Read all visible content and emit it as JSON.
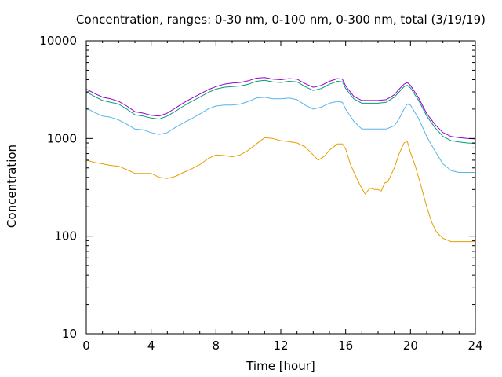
{
  "chart_data": {
    "type": "line",
    "title": "Concentration, ranges: 0-30 nm, 0-100 nm, 0-300 nm, total (3/19/19)",
    "xlabel": "Time [hour]",
    "ylabel": "Concentration",
    "xlim": [
      0,
      24
    ],
    "ylim": [
      10,
      10000
    ],
    "yscale": "log",
    "grid": false,
    "legend": "none",
    "x_ticks": [
      {
        "value": 0,
        "label": "0"
      },
      {
        "value": 4,
        "label": "4"
      },
      {
        "value": 8,
        "label": "8"
      },
      {
        "value": 12,
        "label": "12"
      },
      {
        "value": 16,
        "label": "16"
      },
      {
        "value": 20,
        "label": "20"
      },
      {
        "value": 24,
        "label": "24"
      }
    ],
    "y_ticks": [
      {
        "value": 10,
        "label": "10"
      },
      {
        "value": 100,
        "label": "100"
      },
      {
        "value": 1000,
        "label": "1000"
      },
      {
        "value": 10000,
        "label": "10000"
      }
    ],
    "series": [
      {
        "color": "#e69f00",
        "x": [
          0,
          0.5,
          1,
          1.5,
          2,
          2.5,
          3,
          3.5,
          4,
          4.5,
          5,
          5.5,
          6,
          6.5,
          7,
          7.5,
          8,
          8.5,
          9,
          9.5,
          10,
          10.5,
          11,
          11.5,
          12,
          12.5,
          13,
          13.5,
          14,
          14.3,
          14.7,
          15,
          15.5,
          15.8,
          16,
          16.3,
          16.6,
          16.9,
          17.2,
          17.5,
          17.8,
          18,
          18.2,
          18.4,
          18.6,
          19,
          19.3,
          19.6,
          19.8,
          20,
          20.3,
          20.6,
          21,
          21.3,
          21.6,
          22,
          22.5,
          23,
          23.5,
          24
        ],
        "values": [
          600,
          570,
          550,
          530,
          520,
          480,
          440,
          440,
          440,
          400,
          390,
          410,
          450,
          490,
          540,
          620,
          680,
          670,
          650,
          680,
          760,
          880,
          1020,
          1000,
          950,
          930,
          900,
          820,
          680,
          600,
          660,
          760,
          880,
          880,
          780,
          540,
          420,
          330,
          270,
          310,
          300,
          300,
          290,
          350,
          360,
          500,
          700,
          900,
          940,
          720,
          520,
          350,
          200,
          140,
          110,
          95,
          88,
          88,
          88,
          88
        ]
      },
      {
        "color": "#56b4e9",
        "x": [
          0,
          0.5,
          1,
          1.5,
          2,
          2.5,
          3,
          3.5,
          4,
          4.5,
          5,
          5.5,
          6,
          6.5,
          7,
          7.5,
          8,
          8.5,
          9,
          9.5,
          10,
          10.5,
          11,
          11.5,
          12,
          12.5,
          13,
          13.5,
          14,
          14.5,
          15,
          15.5,
          15.8,
          16,
          16.5,
          17,
          17.5,
          18,
          18.5,
          19,
          19.3,
          19.6,
          19.8,
          20,
          20.5,
          21,
          21.5,
          22,
          22.5,
          23,
          23.5,
          24
        ],
        "values": [
          2050,
          1850,
          1700,
          1650,
          1550,
          1400,
          1250,
          1230,
          1150,
          1100,
          1150,
          1300,
          1450,
          1600,
          1780,
          2000,
          2150,
          2200,
          2200,
          2250,
          2400,
          2600,
          2650,
          2550,
          2550,
          2600,
          2500,
          2200,
          2000,
          2100,
          2300,
          2400,
          2350,
          2000,
          1500,
          1250,
          1250,
          1250,
          1250,
          1350,
          1600,
          2000,
          2250,
          2200,
          1600,
          1050,
          750,
          550,
          470,
          450,
          450,
          450
        ]
      },
      {
        "color": "#009e73",
        "x": [
          0,
          0.5,
          1,
          1.5,
          2,
          2.5,
          3,
          3.5,
          4,
          4.5,
          5,
          5.5,
          6,
          6.5,
          7,
          7.5,
          8,
          8.5,
          9,
          9.5,
          10,
          10.5,
          11,
          11.5,
          12,
          12.5,
          13,
          13.5,
          14,
          14.5,
          15,
          15.5,
          15.8,
          16,
          16.5,
          17,
          17.5,
          18,
          18.5,
          19,
          19.3,
          19.6,
          19.8,
          20,
          20.5,
          21,
          21.5,
          22,
          22.5,
          23,
          23.5,
          24
        ],
        "values": [
          3000,
          2700,
          2450,
          2350,
          2250,
          2000,
          1750,
          1700,
          1620,
          1580,
          1700,
          1900,
          2150,
          2400,
          2650,
          2950,
          3200,
          3350,
          3400,
          3450,
          3600,
          3850,
          3950,
          3800,
          3750,
          3850,
          3800,
          3400,
          3100,
          3250,
          3600,
          3850,
          3800,
          3250,
          2550,
          2300,
          2300,
          2300,
          2350,
          2650,
          3000,
          3400,
          3500,
          3300,
          2450,
          1700,
          1300,
          1050,
          950,
          920,
          900,
          890
        ]
      },
      {
        "color": "#9400d3",
        "x": [
          0,
          0.5,
          1,
          1.5,
          2,
          2.5,
          3,
          3.5,
          4,
          4.5,
          5,
          5.5,
          6,
          6.5,
          7,
          7.5,
          8,
          8.5,
          9,
          9.5,
          10,
          10.5,
          11,
          11.5,
          12,
          12.5,
          13,
          13.5,
          14,
          14.5,
          15,
          15.5,
          15.8,
          16,
          16.5,
          17,
          17.5,
          18,
          18.5,
          19,
          19.3,
          19.6,
          19.8,
          20,
          20.5,
          21,
          21.5,
          22,
          22.5,
          23,
          23.5,
          24
        ],
        "values": [
          3200,
          2900,
          2650,
          2550,
          2400,
          2150,
          1880,
          1820,
          1730,
          1700,
          1820,
          2050,
          2320,
          2580,
          2850,
          3150,
          3400,
          3600,
          3700,
          3750,
          3900,
          4150,
          4200,
          4050,
          4000,
          4100,
          4050,
          3650,
          3350,
          3500,
          3850,
          4100,
          4050,
          3450,
          2700,
          2450,
          2450,
          2450,
          2500,
          2800,
          3200,
          3600,
          3750,
          3500,
          2600,
          1800,
          1400,
          1150,
          1050,
          1020,
          1000,
          990
        ]
      }
    ]
  }
}
